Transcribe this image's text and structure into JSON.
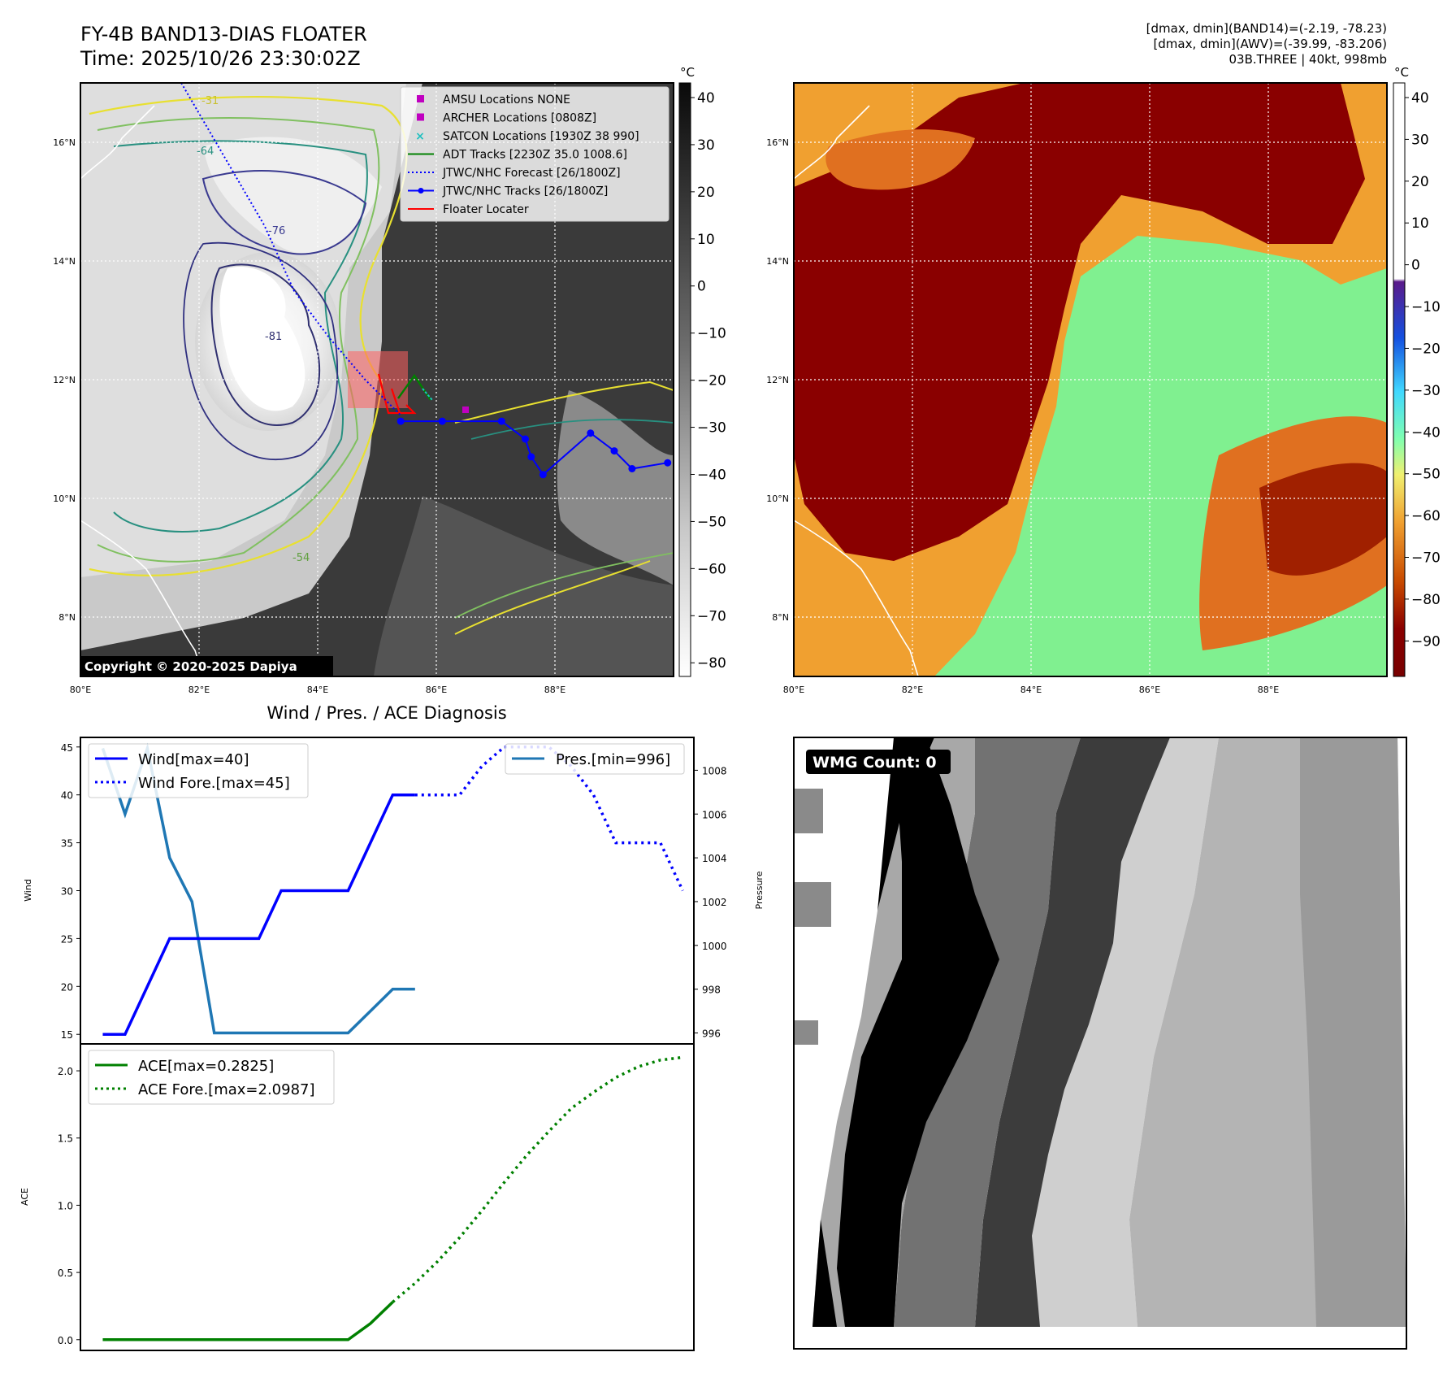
{
  "header": {
    "title_line1": "FY-4B BAND13-DIAS FLOATER",
    "title_line2": "Time: 2025/10/26 23:30:02Z",
    "info_line1": "[dmax, dmin](BAND14)=(-2.19, -78.23)",
    "info_line2": "[dmax, dmin](AWV)=(-39.99, -83.206)",
    "info_line3": "03B.THREE | 40kt, 998mb"
  },
  "map_axes": {
    "lon_ticks": [
      "80°E",
      "82°E",
      "84°E",
      "86°E",
      "88°E"
    ],
    "lat_ticks": [
      "8°N",
      "10°N",
      "12°N",
      "14°N",
      "16°N"
    ],
    "lon_range": [
      80,
      90
    ],
    "lat_range": [
      7,
      17
    ]
  },
  "ir_map": {
    "copyright": "Copyright © 2020-2025 Dapiya",
    "colorbar_unit": "°C",
    "colorbar_ticks": [
      "40",
      "30",
      "20",
      "10",
      "0",
      "−10",
      "−20",
      "−30",
      "−40",
      "−50",
      "−60",
      "−70",
      "−80"
    ],
    "contour_labels": [
      "-31",
      "-54",
      "-64",
      "-76",
      "-81"
    ],
    "legend": [
      {
        "label": "AMSU Locations NONE",
        "color": "#c000c0",
        "marker": "square"
      },
      {
        "label": "ARCHER Locations [0808Z]",
        "color": "#c000c0",
        "marker": "square"
      },
      {
        "label": "SATCON Locations [1930Z 38 990]",
        "color": "#20c0c0",
        "marker": "x"
      },
      {
        "label": "ADT Tracks [2230Z 35.0 1008.6]",
        "color": "#008000",
        "marker": "line"
      },
      {
        "label": "JTWC/NHC Forecast [26/1800Z]",
        "color": "#0000ff",
        "marker": "dotted"
      },
      {
        "label": "JTWC/NHC Tracks [26/1800Z]",
        "color": "#0000ff",
        "marker": "line-dot"
      },
      {
        "label": "Floater Locater",
        "color": "#ff0000",
        "marker": "line"
      }
    ],
    "jtwc_track": [
      [
        85.4,
        11.3
      ],
      [
        86.1,
        11.3
      ],
      [
        87.1,
        11.3
      ],
      [
        87.5,
        11.0
      ],
      [
        87.6,
        10.7
      ],
      [
        87.8,
        10.4
      ],
      [
        88.6,
        11.1
      ],
      [
        89.0,
        10.8
      ],
      [
        89.3,
        10.5
      ],
      [
        89.9,
        10.6
      ]
    ],
    "jtwc_forecast": [
      [
        81.7,
        17.0
      ],
      [
        82.4,
        15.8
      ],
      [
        83.1,
        14.6
      ],
      [
        83.6,
        13.5
      ],
      [
        84.2,
        12.7
      ],
      [
        84.8,
        12.0
      ],
      [
        85.4,
        11.4
      ]
    ],
    "colors": {
      "track": "#0000ff",
      "floater": "#ff0000",
      "adt": "#008000"
    }
  },
  "awv_map": {
    "colorbar_unit": "°C",
    "colorbar_ticks": [
      "40",
      "30",
      "20",
      "10",
      "0",
      "−10",
      "−20",
      "−30",
      "−40",
      "−50",
      "−60",
      "−70",
      "−80",
      "−90"
    ]
  },
  "diagnosis": {
    "title": "Wind / Pres. / ACE Diagnosis",
    "wind_ylabel": "Wind",
    "pres_ylabel": "Pressure",
    "ace_ylabel": "ACE",
    "wind_ticks": [
      "15",
      "20",
      "25",
      "30",
      "35",
      "40",
      "45"
    ],
    "pres_ticks": [
      "996",
      "998",
      "1000",
      "1002",
      "1004",
      "1006",
      "1008"
    ],
    "ace_ticks": [
      "0.0",
      "0.5",
      "1.0",
      "1.5",
      "2.0"
    ],
    "legend_wind": "Wind[max=40]",
    "legend_wind_fore": "Wind Fore.[max=45]",
    "legend_pres": "Pres.[min=996]",
    "legend_ace": "ACE[max=0.2825]",
    "legend_ace_fore": "ACE Fore.[max=2.0987]"
  },
  "chart_data": [
    {
      "type": "line",
      "title": "Wind / Pres. / ACE Diagnosis",
      "ylabel": "Wind",
      "ylim": [
        14,
        46
      ],
      "series": [
        {
          "name": "Wind[max=40]",
          "x": [
            0,
            1,
            3,
            7,
            8,
            11,
            12,
            13,
            14
          ],
          "values": [
            15,
            15,
            25,
            25,
            30,
            30,
            35,
            40,
            40
          ]
        },
        {
          "name": "Wind Fore.[max=45]",
          "x": [
            14,
            16,
            17,
            18,
            19,
            20,
            21,
            22,
            23,
            24,
            25,
            26
          ],
          "values": [
            40,
            40,
            43,
            45,
            45,
            45,
            43,
            40,
            35,
            35,
            35,
            30
          ]
        }
      ],
      "x_range": [
        -1,
        26.5
      ]
    },
    {
      "type": "line",
      "ylabel": "Pressure",
      "ylim": [
        995.5,
        1009.5
      ],
      "series": [
        {
          "name": "Pres.[min=996]",
          "x": [
            0,
            1,
            2,
            3,
            4,
            5,
            10,
            11,
            12,
            13,
            14
          ],
          "values": [
            1009,
            1006,
            1009,
            1004,
            1002,
            996,
            996,
            996,
            997,
            998,
            998
          ]
        }
      ],
      "x_range": [
        -1,
        26.5
      ]
    },
    {
      "type": "line",
      "ylabel": "ACE",
      "ylim": [
        -0.08,
        2.2
      ],
      "series": [
        {
          "name": "ACE[max=0.2825]",
          "x": [
            0,
            11,
            12,
            13
          ],
          "values": [
            0,
            0,
            0.12,
            0.28
          ]
        },
        {
          "name": "ACE Fore.[max=2.0987]",
          "x": [
            13,
            14,
            15,
            16,
            17,
            18,
            19,
            20,
            21,
            22,
            23,
            24,
            25,
            26
          ],
          "values": [
            0.28,
            0.42,
            0.58,
            0.76,
            0.96,
            1.17,
            1.37,
            1.55,
            1.72,
            1.84,
            1.95,
            2.03,
            2.08,
            2.1
          ]
        }
      ],
      "x_range": [
        -1,
        26.5
      ]
    }
  ],
  "wmg": {
    "label": "WMG Count: 0"
  }
}
